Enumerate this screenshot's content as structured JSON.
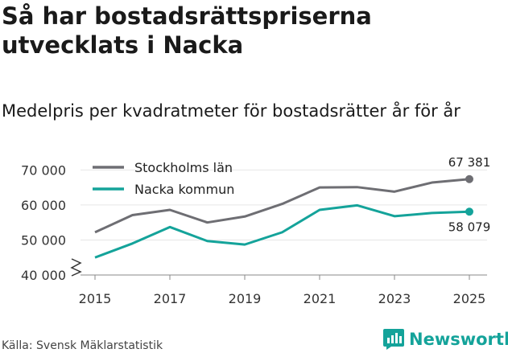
{
  "title": "Så har bostadsrättspriserna utvecklats i Nacka",
  "subtitle": "Medelpris per kvadratmeter för bostadsrätter år för år",
  "source": "Källa: Svensk Mäklarstatistik",
  "brand": "Newsworthy",
  "chart_data": {
    "type": "line",
    "x": [
      2015,
      2016,
      2017,
      2018,
      2019,
      2020,
      2021,
      2022,
      2023,
      2024,
      2025
    ],
    "x_tick_labels": [
      "2015",
      "2017",
      "2019",
      "2021",
      "2023",
      "2025"
    ],
    "y_tick_labels": [
      "40 000",
      "50 000",
      "60 000",
      "70 000"
    ],
    "ylim": [
      40000,
      71000
    ],
    "series": [
      {
        "name": "Stockholms län",
        "color": "#6e6e73",
        "values": [
          52200,
          57100,
          58600,
          55000,
          56700,
          60300,
          65000,
          65100,
          63800,
          66400,
          67381
        ],
        "end_label": "67 381"
      },
      {
        "name": "Nacka kommun",
        "color": "#14a39a",
        "values": [
          45000,
          49000,
          53700,
          49700,
          48700,
          52200,
          58600,
          59900,
          56800,
          57700,
          58079
        ],
        "end_label": "58 079"
      }
    ]
  }
}
